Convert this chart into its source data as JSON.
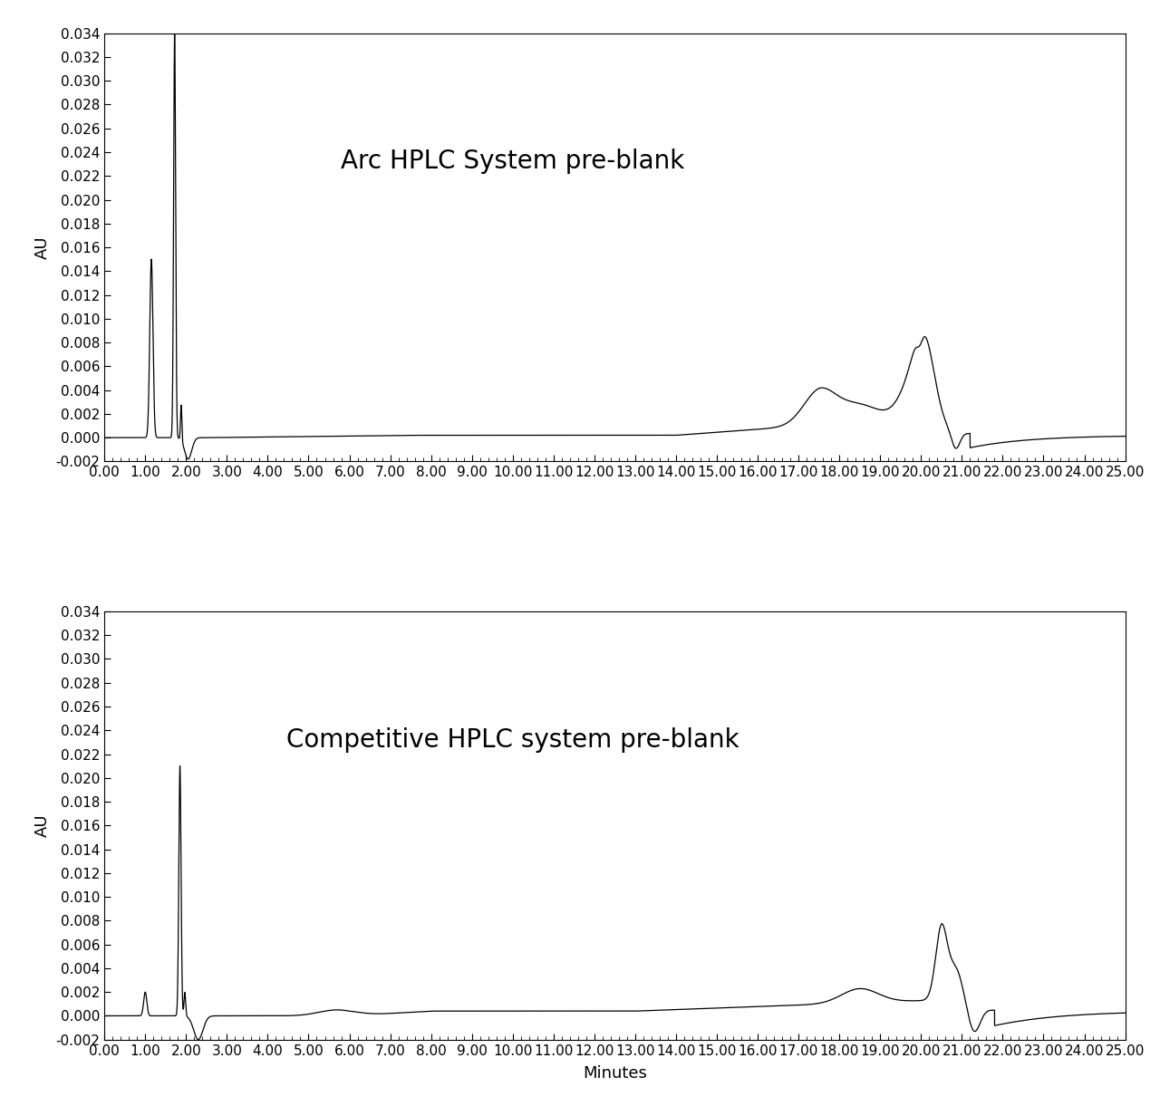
{
  "title1": "Arc HPLC System pre-blank",
  "title2": "Competitive HPLC system pre-blank",
  "xlabel": "Minutes",
  "ylabel": "AU",
  "xlim": [
    0.0,
    25.0
  ],
  "ylim1": [
    -0.002,
    0.034
  ],
  "ylim2": [
    -0.002,
    0.034
  ],
  "yticks": [
    -0.002,
    0.0,
    0.002,
    0.004,
    0.006,
    0.008,
    0.01,
    0.012,
    0.014,
    0.016,
    0.018,
    0.02,
    0.022,
    0.024,
    0.026,
    0.028,
    0.03,
    0.032,
    0.034
  ],
  "xticks": [
    0.0,
    1.0,
    2.0,
    3.0,
    4.0,
    5.0,
    6.0,
    7.0,
    8.0,
    9.0,
    10.0,
    11.0,
    12.0,
    13.0,
    14.0,
    15.0,
    16.0,
    17.0,
    18.0,
    19.0,
    20.0,
    21.0,
    22.0,
    23.0,
    24.0,
    25.0
  ],
  "line_color": "#000000",
  "background_color": "#ffffff",
  "title_fontsize": 20,
  "label_fontsize": 13,
  "tick_fontsize": 11
}
